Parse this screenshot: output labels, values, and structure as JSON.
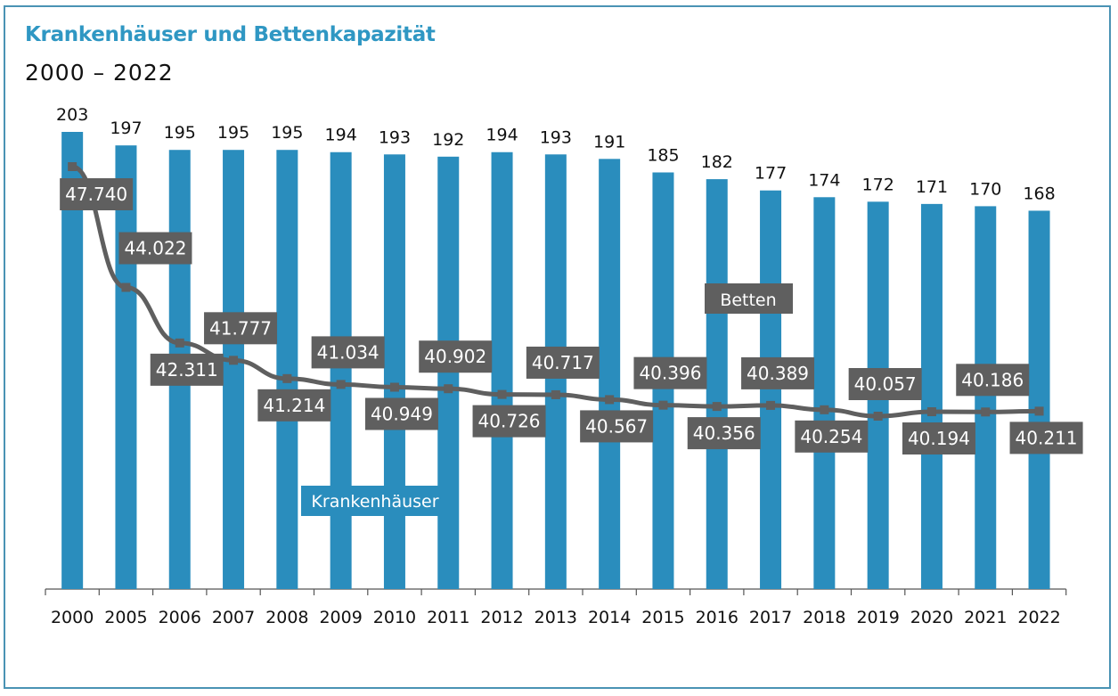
{
  "chart_data": {
    "type": "bar+line",
    "title": "Krankenhäuser und Bettenkapazität",
    "subtitle": "2000 – 2022",
    "categories": [
      "2000",
      "2005",
      "2006",
      "2007",
      "2008",
      "2009",
      "2010",
      "2011",
      "2012",
      "2013",
      "2014",
      "2015",
      "2016",
      "2017",
      "2018",
      "2019",
      "2020",
      "2021",
      "2022"
    ],
    "series": [
      {
        "name": "Krankenhäuser",
        "kind": "bar",
        "color": "#2a8dbd",
        "values": [
          203,
          197,
          195,
          195,
          195,
          194,
          193,
          192,
          194,
          193,
          191,
          185,
          182,
          177,
          174,
          172,
          171,
          170,
          168
        ],
        "labels": [
          "203",
          "197",
          "195",
          "195",
          "195",
          "194",
          "193",
          "192",
          "194",
          "193",
          "191",
          "185",
          "182",
          "177",
          "174",
          "172",
          "171",
          "170",
          "168"
        ]
      },
      {
        "name": "Betten",
        "kind": "line",
        "color": "#5f5f5f",
        "values": [
          47740,
          44022,
          42311,
          41777,
          41214,
          41034,
          40949,
          40902,
          40726,
          40717,
          40567,
          40396,
          40356,
          40389,
          40254,
          40057,
          40194,
          40186,
          40211
        ],
        "labels": [
          "47.740",
          "44.022",
          "42.311",
          "41.777",
          "41.214",
          "41.034",
          "40.949",
          "40.902",
          "40.726",
          "40.717",
          "40.567",
          "40.396",
          "40.356",
          "40.389",
          "40.254",
          "40.057",
          "40.194",
          "40.186",
          "40.211"
        ],
        "label_side": [
          "below",
          "below",
          "below",
          "above",
          "below",
          "above",
          "below",
          "above",
          "below",
          "above",
          "below",
          "above",
          "below",
          "above",
          "below",
          "above",
          "below",
          "above",
          "below"
        ]
      }
    ],
    "legend": [
      {
        "text": "Betten",
        "series": "Betten",
        "placement": "right-middle"
      },
      {
        "text": "Krankenhäuser",
        "series": "Krankenhäuser",
        "placement": "lower-left"
      }
    ],
    "grid": false
  }
}
